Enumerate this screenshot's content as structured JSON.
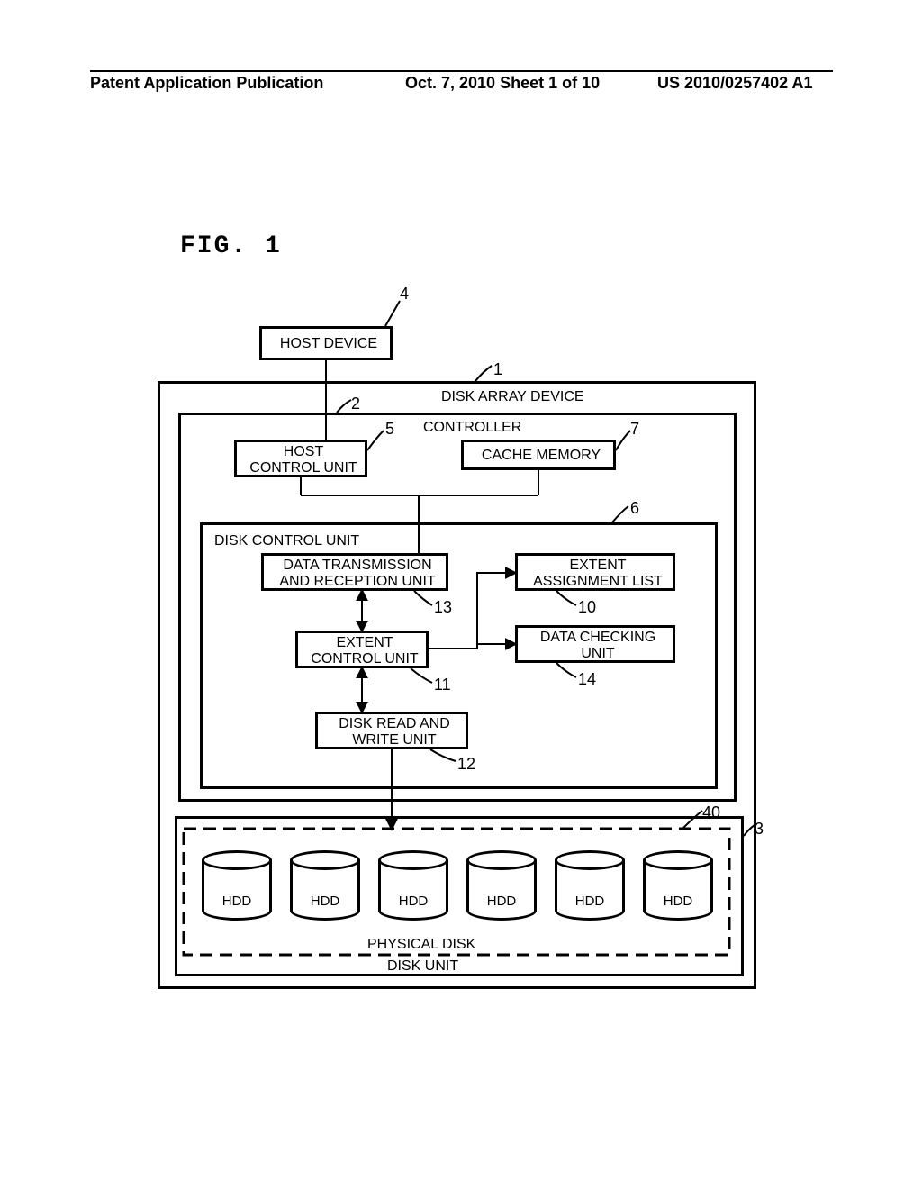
{
  "page": {
    "header_left": "Patent Application Publication",
    "header_mid": "Oct. 7, 2010  Sheet 1 of 10",
    "header_right": "US 2010/0257402 A1",
    "fig_title": "FIG. 1"
  },
  "diagram": {
    "host_device": {
      "label": "HOST DEVICE",
      "ref": "4"
    },
    "disk_array": {
      "label": "DISK ARRAY DEVICE",
      "ref": "1"
    },
    "controller": {
      "label": "CONTROLLER",
      "ref": "2"
    },
    "host_control": {
      "label": "HOST\nCONTROL UNIT",
      "ref": "5"
    },
    "cache_memory": {
      "label": "CACHE MEMORY",
      "ref": "7"
    },
    "disk_control": {
      "label": "DISK CONTROL UNIT",
      "ref": "6"
    },
    "data_trans": {
      "label": "DATA TRANSMISSION\nAND RECEPTION UNIT",
      "ref": "13"
    },
    "extent_list": {
      "label": "EXTENT\nASSIGNMENT LIST",
      "ref": "10"
    },
    "extent_ctrl": {
      "label": "EXTENT\nCONTROL UNIT",
      "ref": "11"
    },
    "data_check": {
      "label": "DATA CHECKING\nUNIT",
      "ref": "14"
    },
    "disk_rw": {
      "label": "DISK READ AND\nWRITE UNIT",
      "ref": "12"
    },
    "physical_disk": {
      "label": "PHYSICAL DISK",
      "ref": "40"
    },
    "disk_unit": {
      "label": "DISK UNIT",
      "ref": "3"
    },
    "hdd_label": "HDD",
    "hdd_count": 6,
    "styling": {
      "line_color": "#000000",
      "line_width_outer": 3,
      "line_width_inner": 3,
      "dash_pattern": "14,8",
      "background": "#ffffff",
      "font_family": "Arial",
      "label_fontsize": 16,
      "ref_fontsize": 18
    }
  }
}
